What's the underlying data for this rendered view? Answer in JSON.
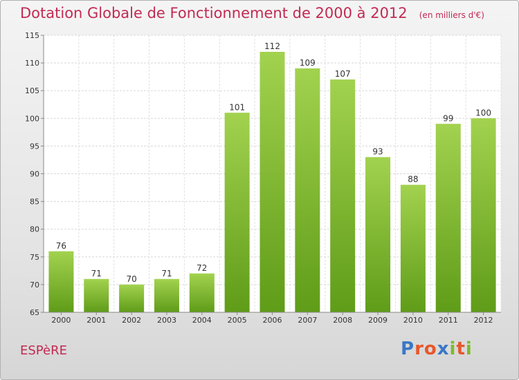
{
  "chart_data": {
    "type": "bar",
    "title": "Dotation Globale de Fonctionnement de 2000 à 2012",
    "subtitle": "(en milliers d'€)",
    "categories": [
      "2000",
      "2001",
      "2002",
      "2003",
      "2004",
      "2005",
      "2006",
      "2007",
      "2008",
      "2009",
      "2010",
      "2011",
      "2012"
    ],
    "values": [
      76,
      71,
      70,
      71,
      72,
      101,
      112,
      109,
      107,
      93,
      88,
      99,
      100
    ],
    "ylim": [
      65,
      115
    ],
    "yticks": [
      65,
      70,
      75,
      80,
      85,
      90,
      95,
      100,
      105,
      110,
      115
    ],
    "grid": true,
    "bar_color": "#7cbb2e",
    "bar_color_light": "#a2d24f",
    "bar_color_dark": "#5f9c18"
  },
  "footer": {
    "commune": "ESPèRE",
    "brand": "Proxiti"
  },
  "colors": {
    "title": "#c22a52",
    "brand_letters": [
      "#3a78c4",
      "#e8572a",
      "#e8572a",
      "#3a78c4",
      "#7cbb2e",
      "#e8572a",
      "#7cbb2e"
    ]
  }
}
